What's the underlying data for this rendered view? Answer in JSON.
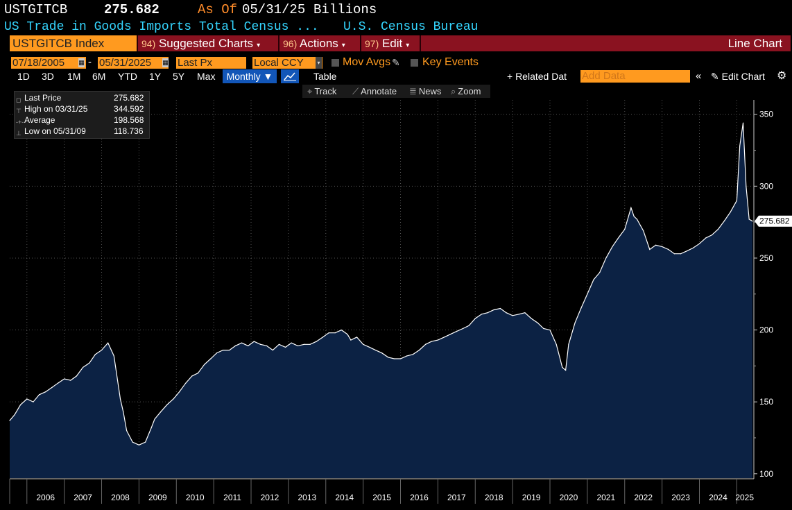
{
  "header": {
    "ticker": "USTGITCB",
    "last_value": "275.682",
    "as_of_label": "As Of",
    "as_of_date": "05/31/25",
    "units": "Billions",
    "description": "US Trade in Goods Imports Total Census ...",
    "source": "U.S. Census Bureau"
  },
  "action_bar": {
    "security": "USTGITCB Index",
    "menus": [
      {
        "num": "94)",
        "label": "Suggested Charts"
      },
      {
        "num": "96)",
        "label": "Actions"
      },
      {
        "num": "97)",
        "label": "Edit"
      }
    ],
    "chart_type": "Line Chart"
  },
  "controls": {
    "start_date": "07/18/2005",
    "end_date": "05/31/2025",
    "field": "Last Px",
    "currency": "Local CCY",
    "mov_avgs": "Mov Avgs",
    "key_events": "Key Events"
  },
  "toolbar": {
    "ranges": [
      "1D",
      "3D",
      "1M",
      "6M",
      "YTD",
      "1Y",
      "5Y",
      "Max"
    ],
    "frequency": "Monthly",
    "table": "Table",
    "related_data": "+ Related Dat",
    "add_data_placeholder": "Add Data",
    "edit_chart": "Edit Chart"
  },
  "tools": {
    "track": "Track",
    "annotate": "Annotate",
    "news": "News",
    "zoom": "Zoom"
  },
  "legend": [
    {
      "key": "Last Price",
      "value": "275.682"
    },
    {
      "key": "High on 03/31/25",
      "value": "344.592"
    },
    {
      "key": "Average",
      "value": "198.568"
    },
    {
      "key": "Low on 05/31/09",
      "value": "118.736"
    }
  ],
  "colors": {
    "line": "#ffffff",
    "area_fill": "#0c2244",
    "accent": "#ff9a1f",
    "bar": "#8a1220"
  },
  "chart_data": {
    "type": "area",
    "title": "",
    "xlabel": "",
    "ylabel": "",
    "ylim": [
      97,
      360
    ],
    "yticks": [
      100,
      150,
      200,
      250,
      300,
      350
    ],
    "xlim": [
      2005.54,
      2025.42
    ],
    "year_labels": [
      "2006",
      "2007",
      "2008",
      "2009",
      "2010",
      "2011",
      "2012",
      "2013",
      "2014",
      "2015",
      "2016",
      "2017",
      "2018",
      "2019",
      "2020",
      "2021",
      "2022",
      "2023",
      "2024",
      "2025"
    ],
    "last_value_label": "275.682",
    "series": [
      {
        "x": [
          2005.54,
          2005.67,
          2005.83,
          2006.0,
          2006.17,
          2006.33,
          2006.5,
          2006.67,
          2006.83,
          2007.0,
          2007.17,
          2007.33,
          2007.5,
          2007.67,
          2007.83,
          2008.0,
          2008.17,
          2008.33,
          2008.5,
          2008.58,
          2008.67,
          2008.83,
          2009.0,
          2009.17,
          2009.33,
          2009.42,
          2009.58,
          2009.75,
          2009.92,
          2010.08,
          2010.25,
          2010.42,
          2010.58,
          2010.75,
          2010.92,
          2011.08,
          2011.25,
          2011.42,
          2011.58,
          2011.75,
          2011.92,
          2012.08,
          2012.25,
          2012.42,
          2012.58,
          2012.75,
          2012.92,
          2013.08,
          2013.25,
          2013.42,
          2013.58,
          2013.75,
          2013.92,
          2014.08,
          2014.25,
          2014.42,
          2014.58,
          2014.67,
          2014.83,
          2015.0,
          2015.17,
          2015.33,
          2015.5,
          2015.67,
          2015.83,
          2016.0,
          2016.17,
          2016.33,
          2016.5,
          2016.67,
          2016.83,
          2017.0,
          2017.17,
          2017.33,
          2017.5,
          2017.67,
          2017.83,
          2018.0,
          2018.17,
          2018.33,
          2018.5,
          2018.67,
          2018.83,
          2019.0,
          2019.17,
          2019.33,
          2019.5,
          2019.67,
          2019.83,
          2020.0,
          2020.17,
          2020.33,
          2020.42,
          2020.5,
          2020.67,
          2020.83,
          2021.0,
          2021.17,
          2021.33,
          2021.5,
          2021.67,
          2021.83,
          2022.0,
          2022.17,
          2022.25,
          2022.33,
          2022.5,
          2022.67,
          2022.83,
          2023.0,
          2023.17,
          2023.33,
          2023.5,
          2023.67,
          2023.83,
          2024.0,
          2024.17,
          2024.33,
          2024.5,
          2024.67,
          2024.83,
          2025.0,
          2025.08,
          2025.17,
          2025.25,
          2025.33,
          2025.42
        ],
        "y": [
          137,
          141,
          148,
          152,
          150,
          155,
          157,
          160,
          163,
          166,
          165,
          168,
          174,
          177,
          183,
          186,
          191,
          182,
          152,
          143,
          130,
          122,
          120,
          122,
          132,
          138,
          143,
          148,
          152,
          157,
          163,
          168,
          170,
          176,
          180,
          184,
          186,
          186,
          189,
          191,
          189,
          192,
          190,
          189,
          186,
          190,
          188,
          191,
          189,
          190,
          190,
          192,
          195,
          198,
          198,
          200,
          197,
          193,
          195,
          190,
          188,
          186,
          184,
          181,
          180,
          180,
          182,
          183,
          186,
          190,
          192,
          193,
          195,
          197,
          199,
          201,
          203,
          208,
          211,
          212,
          214,
          215,
          212,
          210,
          211,
          212,
          208,
          205,
          201,
          200,
          190,
          174,
          172,
          190,
          205,
          215,
          225,
          235,
          240,
          250,
          258,
          264,
          270,
          285,
          279,
          277,
          269,
          256,
          259,
          258,
          256,
          253,
          253,
          255,
          257,
          260,
          264,
          266,
          270,
          276,
          282,
          290,
          328,
          344,
          300,
          277,
          275.682
        ]
      }
    ]
  }
}
